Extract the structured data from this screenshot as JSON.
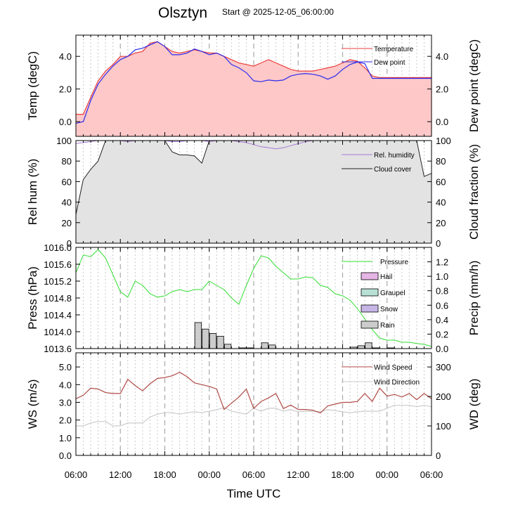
{
  "header": {
    "title": "Olsztyn",
    "start_label": "Start @ 2025-12-05_06:00:00"
  },
  "colors": {
    "temperature": "#e8403c",
    "dew_point": "#2a2aee",
    "temp_fill": "#ffc8c8",
    "rel_humidity": "#a67bd4",
    "cloud_cover": "#222222",
    "cloud_fill": "#e3e3e3",
    "pressure": "#33dd33",
    "rain_bar": "#cccccc",
    "hail": "#e5b5e5",
    "graupel": "#b8e0d4",
    "snow": "#c6b6e6",
    "wind_speed": "#b04a46",
    "wind_direction": "#cccccc"
  },
  "chart_data": [
    {
      "panel": "temperature",
      "type": "area",
      "xlabel": "",
      "ylabel": "Temp (degC)",
      "y2label": "Dew point (degC)",
      "ylim": [
        -0.9,
        5.3
      ],
      "yticks": [
        "0.0",
        "2.0",
        "4.0"
      ],
      "y2ticks": [
        "0.0",
        "2.0",
        "4.0"
      ],
      "legend_position": "top-right",
      "x_hours": [
        0,
        1,
        2,
        3,
        4,
        5,
        6,
        7,
        8,
        9,
        10,
        11,
        12,
        13,
        14,
        15,
        16,
        17,
        18,
        19,
        20,
        21,
        22,
        23,
        24,
        25,
        26,
        27,
        28,
        29,
        30,
        31,
        32,
        33,
        34,
        35,
        36,
        37,
        38,
        39,
        40,
        41,
        42,
        43,
        44,
        45,
        46,
        47,
        48
      ],
      "series": [
        {
          "name": "Temperature",
          "values": [
            0.45,
            0.45,
            1.5,
            2.5,
            3.1,
            3.5,
            4.0,
            4.0,
            4.2,
            4.3,
            4.8,
            4.9,
            4.6,
            4.3,
            4.2,
            4.3,
            4.4,
            4.3,
            4.2,
            4.2,
            4.0,
            3.8,
            3.6,
            3.5,
            3.4,
            3.6,
            3.8,
            3.6,
            3.4,
            3.2,
            3.1,
            3.1,
            3.1,
            3.2,
            3.3,
            3.4,
            3.6,
            3.8,
            3.7,
            3.3,
            2.8,
            2.7,
            2.7,
            2.7,
            2.7,
            2.7,
            2.7,
            2.7,
            2.7
          ]
        },
        {
          "name": "Dew point",
          "values": [
            -0.1,
            0.0,
            1.3,
            2.3,
            2.9,
            3.4,
            3.8,
            4.0,
            4.4,
            4.5,
            4.7,
            4.9,
            4.6,
            4.1,
            4.1,
            4.2,
            4.45,
            4.3,
            4.1,
            4.2,
            4.0,
            3.5,
            3.3,
            3.0,
            2.5,
            2.45,
            2.55,
            2.5,
            2.55,
            2.8,
            2.9,
            2.95,
            2.9,
            2.8,
            2.6,
            2.8,
            3.2,
            3.5,
            3.65,
            3.55,
            2.65,
            2.65,
            2.65,
            2.65,
            2.65,
            2.65,
            2.65,
            2.65,
            2.65
          ]
        }
      ]
    },
    {
      "panel": "humidity",
      "type": "area",
      "xlabel": "",
      "ylabel": "Rel hum (%)",
      "y2label": "Cloud fraction (%)",
      "ylim": [
        0,
        100
      ],
      "yticks": [
        "0",
        "20",
        "40",
        "60",
        "80",
        "100"
      ],
      "y2ticks": [
        "0",
        "20",
        "40",
        "60",
        "80",
        "100"
      ],
      "legend_position": "top-right",
      "series": [
        {
          "name": "Rel. humidity",
          "values": [
            97,
            98,
            99,
            100,
            100,
            100,
            100,
            99,
            100,
            100,
            100,
            100,
            100,
            99,
            99,
            100,
            100,
            100,
            99,
            100,
            100,
            100,
            99,
            98,
            96,
            94,
            93,
            92,
            93,
            95,
            97,
            99,
            100,
            100,
            100,
            100,
            100,
            100,
            100,
            100,
            100,
            100,
            100,
            100,
            100,
            100,
            100,
            100,
            100
          ]
        },
        {
          "name": "Cloud cover",
          "values": [
            28,
            62,
            72,
            80,
            100,
            100,
            100,
            100,
            100,
            100,
            100,
            100,
            100,
            89,
            86,
            86,
            85,
            78,
            100,
            100,
            100,
            100,
            100,
            100,
            100,
            100,
            100,
            100,
            100,
            100,
            100,
            100,
            100,
            100,
            100,
            100,
            100,
            100,
            100,
            100,
            100,
            100,
            100,
            100,
            100,
            100,
            100,
            65,
            68
          ]
        }
      ]
    },
    {
      "panel": "pressure",
      "type": "line",
      "xlabel": "",
      "ylabel": "Press (hPa)",
      "y2label": "Precip (mm/h)",
      "ylim": [
        1013.6,
        1016.0
      ],
      "yticks": [
        "1013.6",
        "1014.0",
        "1014.4",
        "1014.8",
        "1015.2",
        "1015.6",
        "1016.0"
      ],
      "y2ticks": [
        "0.0",
        "0.2",
        "0.4",
        "0.6",
        "0.8",
        "1.0",
        "1.2"
      ],
      "y2lim": [
        0,
        1.4
      ],
      "legend_position": "top-right",
      "legend": [
        "Pressure",
        "Hail",
        "Graupel",
        "Snow",
        "Rain"
      ],
      "series": [
        {
          "name": "Pressure",
          "values": [
            1015.4,
            1015.82,
            1015.78,
            1015.95,
            1015.75,
            1015.35,
            1014.95,
            1014.82,
            1015.2,
            1015.1,
            1014.9,
            1014.82,
            1014.85,
            1014.95,
            1015.0,
            1014.95,
            1015.0,
            1015.0,
            1015.2,
            1015.1,
            1015.0,
            1014.8,
            1014.65,
            1015.1,
            1015.5,
            1015.8,
            1015.75,
            1015.55,
            1015.4,
            1015.25,
            1015.25,
            1015.3,
            1015.28,
            1015.1,
            1015.05,
            1014.9,
            1014.85,
            1014.75,
            1014.55,
            1014.3,
            1014.05,
            1013.85,
            1013.8,
            1013.8,
            1013.75,
            1013.75,
            1013.72,
            1013.7,
            1013.65
          ]
        }
      ],
      "rain_bars": [
        {
          "hour": 16.5,
          "value": 0.36
        },
        {
          "hour": 17.5,
          "value": 0.27
        },
        {
          "hour": 18.5,
          "value": 0.21
        },
        {
          "hour": 19.5,
          "value": 0.17
        },
        {
          "hour": 20.5,
          "value": 0.06
        },
        {
          "hour": 22.5,
          "value": 0.01
        },
        {
          "hour": 23.5,
          "value": 0.01
        },
        {
          "hour": 25.5,
          "value": 0.08
        },
        {
          "hour": 26.5,
          "value": 0.05
        },
        {
          "hour": 37.5,
          "value": 0.02
        },
        {
          "hour": 38.5,
          "value": 0.04
        },
        {
          "hour": 39.5,
          "value": 0.08
        },
        {
          "hour": 40.5,
          "value": 0.01
        },
        {
          "hour": 42.5,
          "value": 0.01
        }
      ]
    },
    {
      "panel": "wind",
      "type": "line",
      "xlabel": "Time UTC",
      "ylabel": "WS (m/s)",
      "y2label": "WD (deg)",
      "ylim": [
        0,
        5.8
      ],
      "yticks": [
        "0.0",
        "1.0",
        "2.0",
        "3.0",
        "4.0",
        "5.0"
      ],
      "y2ticks": [
        "0",
        "100",
        "200",
        "300"
      ],
      "y2lim": [
        0,
        348
      ],
      "legend_position": "top-right",
      "xticks": [
        "06:00",
        "12:00",
        "18:00",
        "00:00",
        "06:00",
        "12:00",
        "18:00",
        "00:00",
        "06:00"
      ],
      "series": [
        {
          "name": "Wind Speed",
          "values": [
            3.2,
            3.4,
            3.8,
            3.75,
            3.55,
            3.5,
            3.5,
            4.3,
            3.95,
            3.65,
            4.05,
            4.35,
            4.4,
            4.5,
            4.7,
            4.45,
            4.1,
            4.0,
            3.9,
            3.75,
            2.6,
            2.95,
            3.3,
            3.75,
            2.65,
            3.05,
            3.25,
            3.5,
            2.65,
            2.85,
            2.6,
            2.6,
            2.55,
            2.4,
            2.8,
            2.9,
            3.0,
            3.0,
            3.05,
            3.5,
            3.05,
            3.8,
            3.35,
            3.45,
            3.3,
            3.5,
            3.15,
            3.5,
            3.2
          ]
        },
        {
          "name": "Wind Direction",
          "values": [
            100,
            100,
            110,
            115,
            115,
            100,
            100,
            110,
            110,
            110,
            130,
            140,
            145,
            145,
            140,
            145,
            148,
            145,
            150,
            155,
            162,
            150,
            145,
            140,
            160,
            150,
            160,
            160,
            150,
            155,
            148,
            150,
            150,
            148,
            155,
            152,
            148,
            145,
            148,
            150,
            150,
            150,
            160,
            170,
            170,
            170,
            165,
            170,
            165
          ]
        }
      ]
    }
  ]
}
